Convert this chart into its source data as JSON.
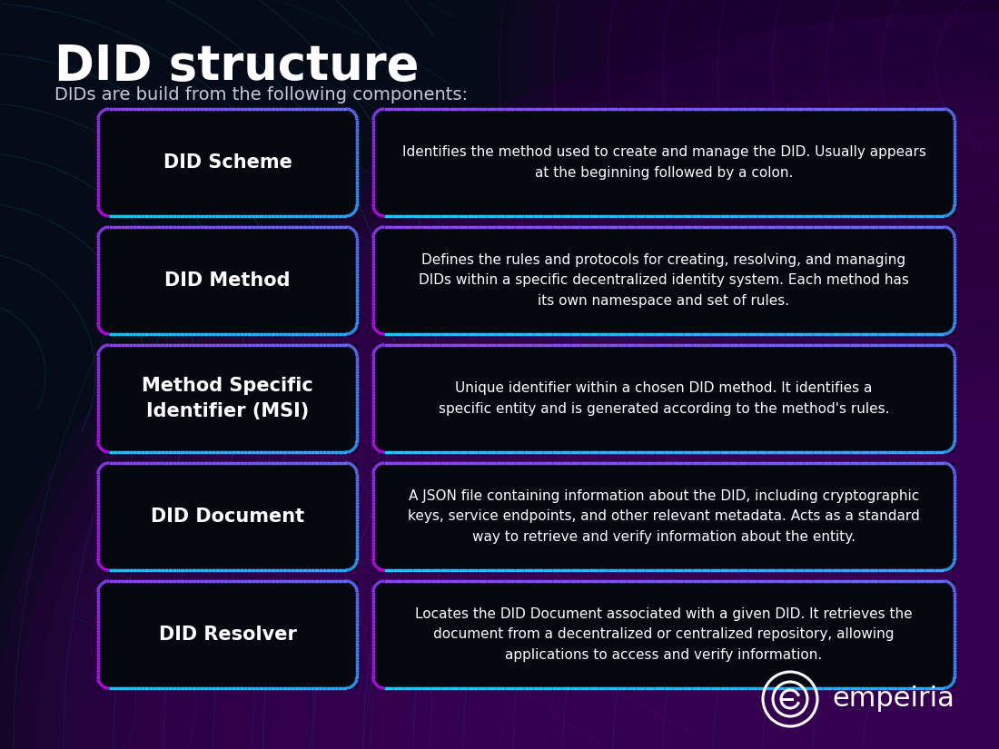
{
  "title": "DID structure",
  "subtitle": "DIDs are build from the following components:",
  "background_color": "#060b18",
  "rows": [
    {
      "label": "DID Scheme",
      "description": "Identifies the method used to create and manage the DID. Usually appears\nat the beginning followed by a colon."
    },
    {
      "label": "DID Method",
      "description": "Defines the rules and protocols for creating, resolving, and managing\nDIDs within a specific decentralized identity system. Each method has\nits own namespace and set of rules."
    },
    {
      "label": "Method Specific\nIdentifier (MSI)",
      "description": "Unique identifier within a chosen DID method. It identifies a\nspecific entity and is generated according to the method's rules."
    },
    {
      "label": "DID Document",
      "description": "A JSON file containing information about the DID, including cryptographic\nkeys, service endpoints, and other relevant metadata. Acts as a standard\nway to retrieve and verify information about the entity."
    },
    {
      "label": "DID Resolver",
      "description": "Locates the DID Document associated with a given DID. It retrieves the\ndocument from a decentralized or centralized repository, allowing\napplications to access and verify information."
    }
  ],
  "box_face_color": "#06080f",
  "border_cyan": "#00d4ff",
  "border_magenta": "#cc00ff",
  "label_color": "#ffffff",
  "desc_color": "#ffffff",
  "title_color": "#ffffff",
  "subtitle_color": "#c8c8d8",
  "logo_text": "empeiria",
  "logo_color": "#ffffff",
  "fig_width": 11.0,
  "fig_height": 8.25,
  "fig_dpi": 100
}
